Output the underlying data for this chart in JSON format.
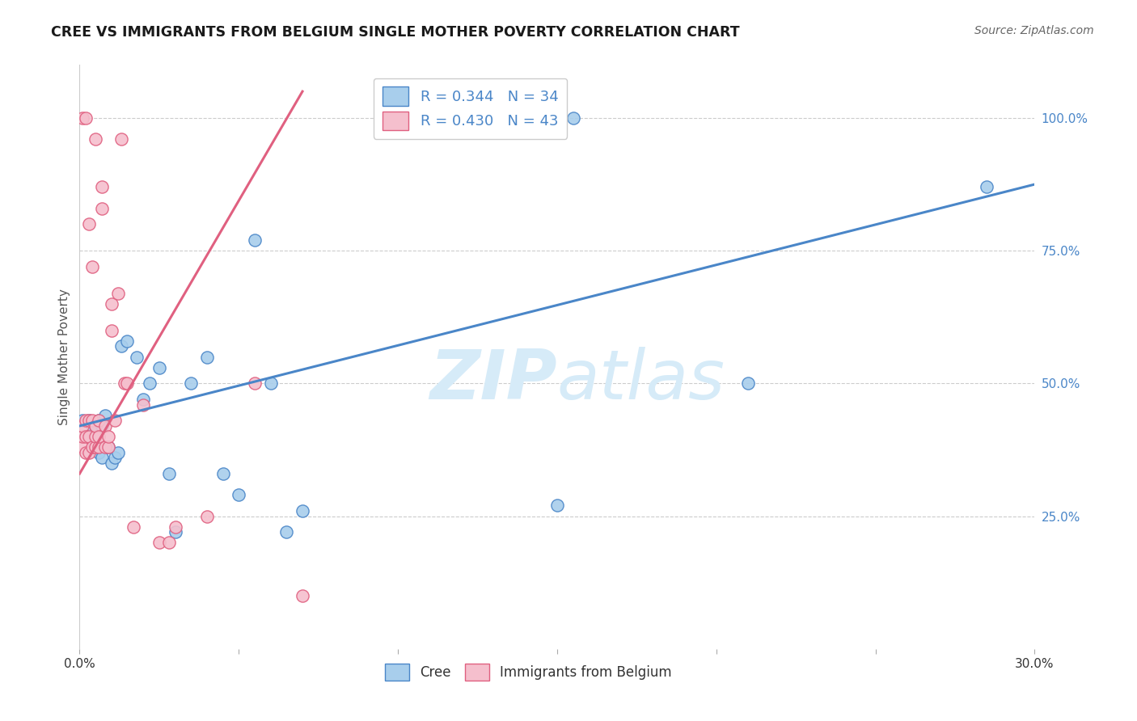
{
  "title": "CREE VS IMMIGRANTS FROM BELGIUM SINGLE MOTHER POVERTY CORRELATION CHART",
  "source": "Source: ZipAtlas.com",
  "ylabel": "Single Mother Poverty",
  "ytick_labels": [
    "25.0%",
    "50.0%",
    "75.0%",
    "100.0%"
  ],
  "ytick_values": [
    0.25,
    0.5,
    0.75,
    1.0
  ],
  "xlim": [
    0.0,
    0.3
  ],
  "ylim": [
    0.0,
    1.1
  ],
  "legend_label_cree": "Cree",
  "legend_label_belgium": "Immigrants from Belgium",
  "color_cree_fill": "#A8CEEC",
  "color_cree_edge": "#4A86C8",
  "color_belgium_fill": "#F5BFCD",
  "color_belgium_edge": "#E06080",
  "color_line_cree": "#4A86C8",
  "color_line_belgium": "#E06080",
  "watermark_zip": "ZIP",
  "watermark_atlas": "atlas",
  "watermark_color": "#D6EBF8",
  "cree_scatter_x": [
    0.001,
    0.003,
    0.004,
    0.004,
    0.005,
    0.006,
    0.006,
    0.007,
    0.007,
    0.008,
    0.009,
    0.01,
    0.011,
    0.012,
    0.013,
    0.015,
    0.018,
    0.02,
    0.022,
    0.025,
    0.028,
    0.035,
    0.04,
    0.045,
    0.05,
    0.055,
    0.06,
    0.065,
    0.15,
    0.155,
    0.21,
    0.285,
    0.03,
    0.07
  ],
  "cree_scatter_y": [
    0.43,
    0.43,
    0.42,
    0.38,
    0.42,
    0.37,
    0.43,
    0.36,
    0.42,
    0.44,
    0.38,
    0.35,
    0.36,
    0.37,
    0.57,
    0.58,
    0.55,
    0.47,
    0.5,
    0.53,
    0.33,
    0.5,
    0.55,
    0.33,
    0.29,
    0.77,
    0.5,
    0.22,
    0.27,
    1.0,
    0.5,
    0.87,
    0.22,
    0.26
  ],
  "belgium_scatter_x": [
    0.001,
    0.001,
    0.001,
    0.001,
    0.002,
    0.002,
    0.002,
    0.002,
    0.003,
    0.003,
    0.003,
    0.003,
    0.004,
    0.004,
    0.004,
    0.005,
    0.005,
    0.005,
    0.005,
    0.006,
    0.006,
    0.006,
    0.007,
    0.007,
    0.008,
    0.008,
    0.009,
    0.009,
    0.01,
    0.01,
    0.011,
    0.012,
    0.013,
    0.014,
    0.015,
    0.017,
    0.02,
    0.025,
    0.028,
    0.03,
    0.04,
    0.055,
    0.07
  ],
  "belgium_scatter_y": [
    0.38,
    0.4,
    0.42,
    1.0,
    0.37,
    0.4,
    0.43,
    1.0,
    0.37,
    0.4,
    0.43,
    0.8,
    0.38,
    0.43,
    0.72,
    0.38,
    0.4,
    0.42,
    0.96,
    0.38,
    0.4,
    0.43,
    0.83,
    0.87,
    0.38,
    0.42,
    0.38,
    0.4,
    0.6,
    0.65,
    0.43,
    0.67,
    0.96,
    0.5,
    0.5,
    0.23,
    0.46,
    0.2,
    0.2,
    0.23,
    0.25,
    0.5,
    0.1
  ],
  "cree_line_x0": 0.0,
  "cree_line_y0": 0.42,
  "cree_line_x1": 0.3,
  "cree_line_y1": 0.875,
  "belgium_line_x0": 0.0,
  "belgium_line_y0": 0.33,
  "belgium_line_x1": 0.07,
  "belgium_line_y1": 1.05,
  "R_cree": 0.344,
  "N_cree": 34,
  "R_belgium": 0.43,
  "N_belgium": 43
}
